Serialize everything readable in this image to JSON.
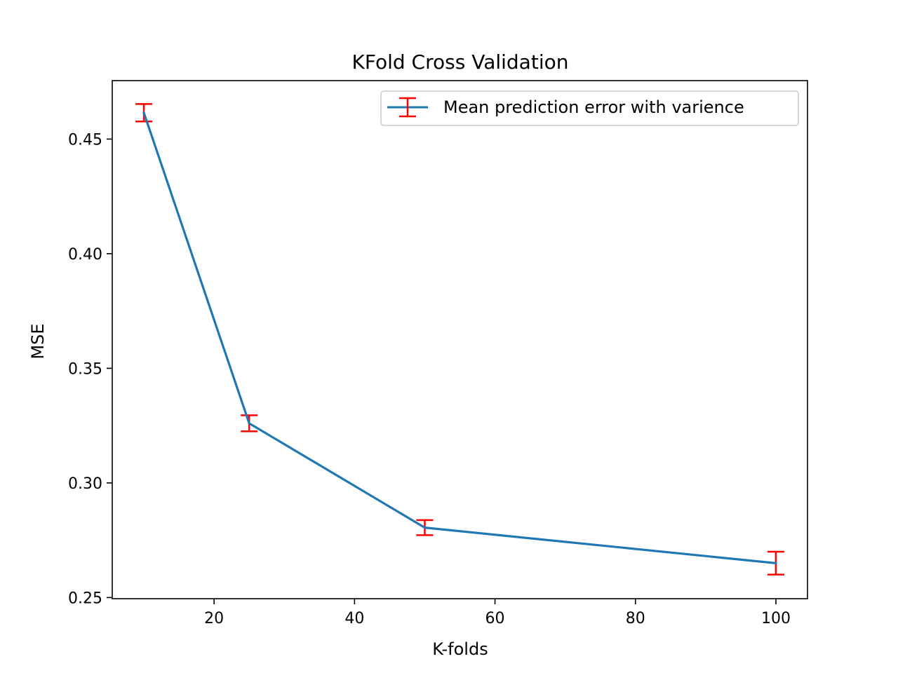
{
  "chart_data": {
    "type": "line",
    "title": "KFold Cross Validation",
    "xlabel": "K-folds",
    "ylabel": "MSE",
    "xlim": [
      5.5,
      104.5
    ],
    "ylim": [
      0.2495,
      0.4755
    ],
    "xticks": [
      20,
      40,
      60,
      80,
      100
    ],
    "xtick_labels": [
      "20",
      "40",
      "60",
      "80",
      "100"
    ],
    "yticks": [
      0.25,
      0.3,
      0.35,
      0.4,
      0.45
    ],
    "ytick_labels": [
      "0.25",
      "0.30",
      "0.35",
      "0.40",
      "0.45"
    ],
    "grid": false,
    "legend_position": "top-right",
    "series": [
      {
        "name": "Mean prediction error with varience",
        "x": [
          10,
          25,
          50,
          100
        ],
        "y": [
          0.4615,
          0.326,
          0.2805,
          0.265
        ],
        "yerr": [
          0.0038,
          0.0035,
          0.0033,
          0.005
        ],
        "line_color": "#1f77b4",
        "errorbar_color": "#ff0000"
      }
    ]
  }
}
